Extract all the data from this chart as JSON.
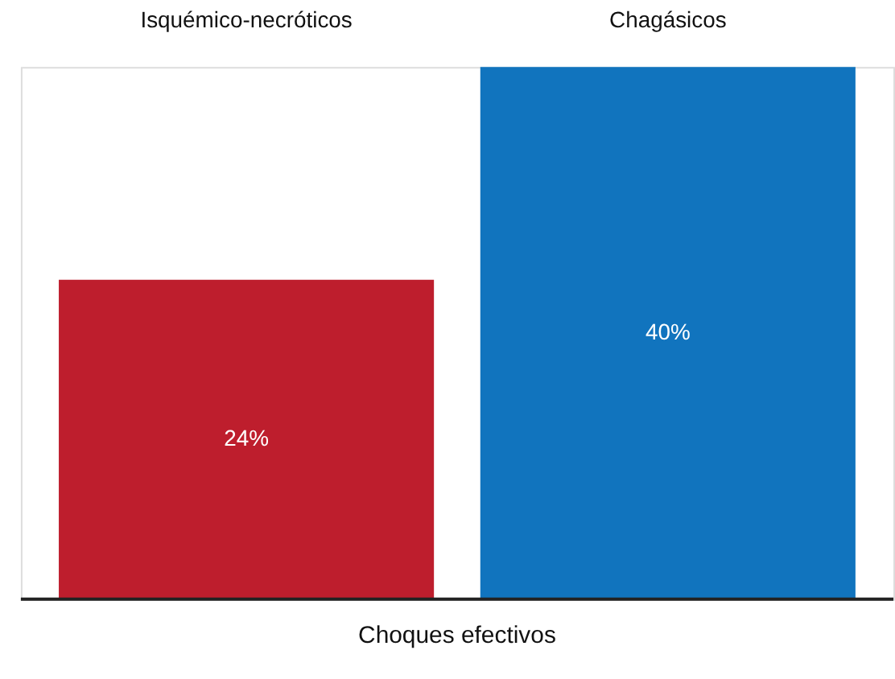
{
  "chart_data": {
    "type": "bar",
    "xlabel": "Choques efectivos",
    "categories": [
      "Isquémico-necróticos",
      "Chagásicos"
    ],
    "values": [
      24,
      40
    ],
    "value_labels": [
      "24%",
      "40%"
    ],
    "colors": [
      "#be1e2d",
      "#1174be"
    ]
  }
}
